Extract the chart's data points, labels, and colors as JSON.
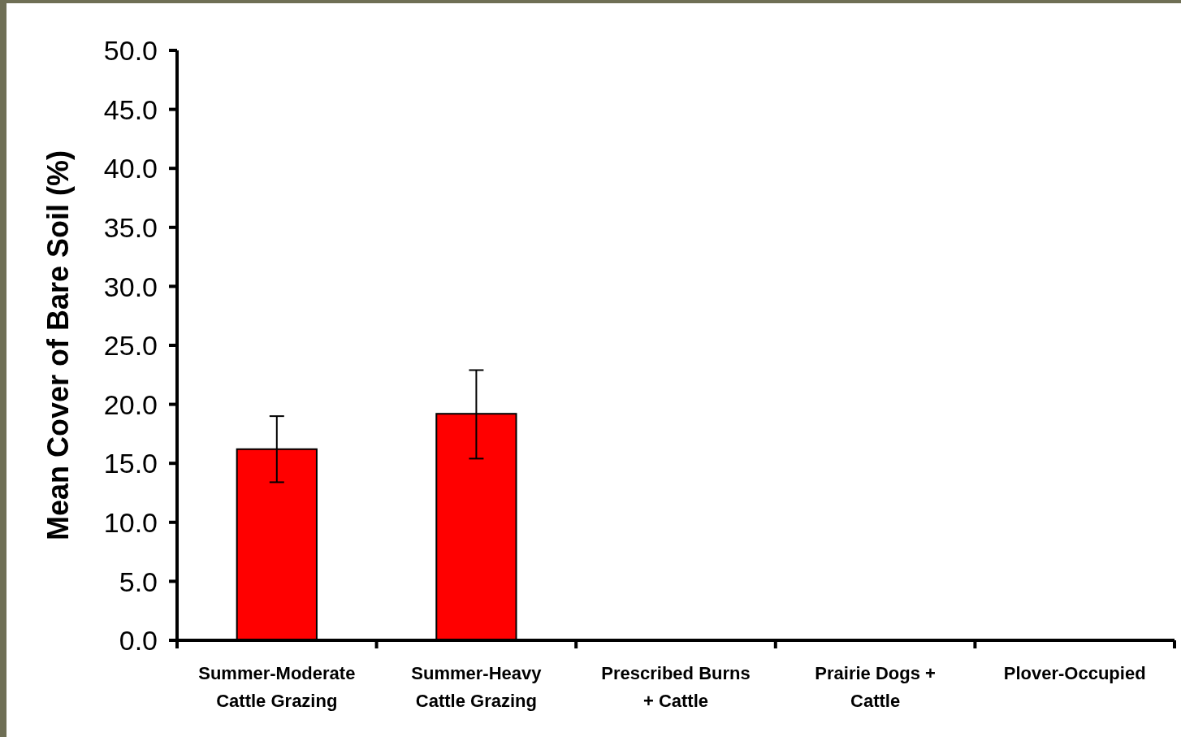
{
  "chart_data": {
    "type": "bar",
    "ylabel": "Mean Cover of Bare Soil (%)",
    "categories": [
      "Summer-Moderate\nCattle Grazing",
      "Summer-Heavy\nCattle Grazing",
      "Prescribed Burns\n+ Cattle",
      "Prairie Dogs +\nCattle",
      "Plover-Occupied"
    ],
    "values": [
      16.2,
      19.2,
      null,
      null,
      null
    ],
    "errors": [
      [
        13.4,
        19.0
      ],
      [
        15.4,
        22.9
      ],
      null,
      null,
      null
    ],
    "color": "#ff0000",
    "ylim": [
      0,
      50
    ],
    "yticks": [
      {
        "value": 0,
        "label": "0.0"
      },
      {
        "value": 5,
        "label": "5.0"
      },
      {
        "value": 10,
        "label": "10.0"
      },
      {
        "value": 15,
        "label": "15.0"
      },
      {
        "value": 20,
        "label": "20.0"
      },
      {
        "value": 25,
        "label": "25.0"
      },
      {
        "value": 30,
        "label": "30.0"
      },
      {
        "value": 35,
        "label": "35.0"
      },
      {
        "value": 40,
        "label": "40.0"
      },
      {
        "value": 45,
        "label": "45.0"
      },
      {
        "value": 50,
        "label": "50.0"
      }
    ],
    "orientation": "vertical"
  }
}
